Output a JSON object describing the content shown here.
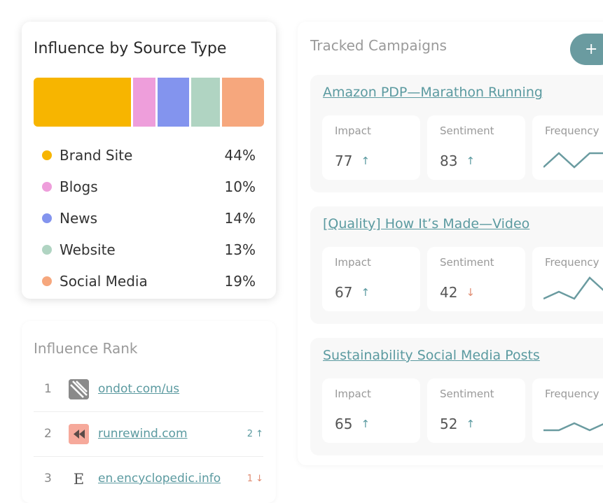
{
  "influence": {
    "title": "Influence by Source Type",
    "sources": [
      {
        "label": "Brand Site",
        "pct": "44%",
        "value": 44,
        "color": "#F7B500"
      },
      {
        "label": "Blogs",
        "pct": "10%",
        "value": 10,
        "color": "#EE9EDB"
      },
      {
        "label": "News",
        "pct": "14%",
        "value": 14,
        "color": "#8394EE"
      },
      {
        "label": "Website",
        "pct": "13%",
        "value": 13,
        "color": "#B0D4C2"
      },
      {
        "label": "Social Media",
        "pct": "19%",
        "value": 19,
        "color": "#F6A77D"
      }
    ]
  },
  "rank": {
    "title": "Influence Rank",
    "items": [
      {
        "num": "1",
        "link": "ondot.com/us",
        "change": "",
        "dir": "",
        "icon": "slash-logo-icon"
      },
      {
        "num": "2",
        "link": "runrewind.com",
        "change": "2",
        "dir": "up",
        "icon": "rewind-logo-icon"
      },
      {
        "num": "3",
        "link": "en.encyclopedic.info",
        "change": "1",
        "dir": "down",
        "icon": "letter-e-logo-icon"
      }
    ]
  },
  "campaigns": {
    "title": "Tracked Campaigns",
    "add_label": "+",
    "labels": {
      "impact": "Impact",
      "sentiment": "Sentiment",
      "frequency": "Frequency"
    },
    "items": [
      {
        "name": "Amazon PDP—Marathon Running",
        "impact": "77",
        "impact_dir": "up",
        "sentiment": "83",
        "sentiment_dir": "up",
        "frequency": [
          1,
          3,
          1,
          3,
          3
        ]
      },
      {
        "name": "[Quality] How It’s Made—Video",
        "impact": "67",
        "impact_dir": "up",
        "sentiment": "42",
        "sentiment_dir": "down",
        "frequency": [
          1,
          2,
          1,
          4,
          2
        ]
      },
      {
        "name": "Sustainability Social Media Posts",
        "impact": "65",
        "impact_dir": "up",
        "sentiment": "52",
        "sentiment_dir": "up",
        "frequency": [
          1,
          1,
          2,
          1,
          2
        ]
      }
    ]
  }
}
